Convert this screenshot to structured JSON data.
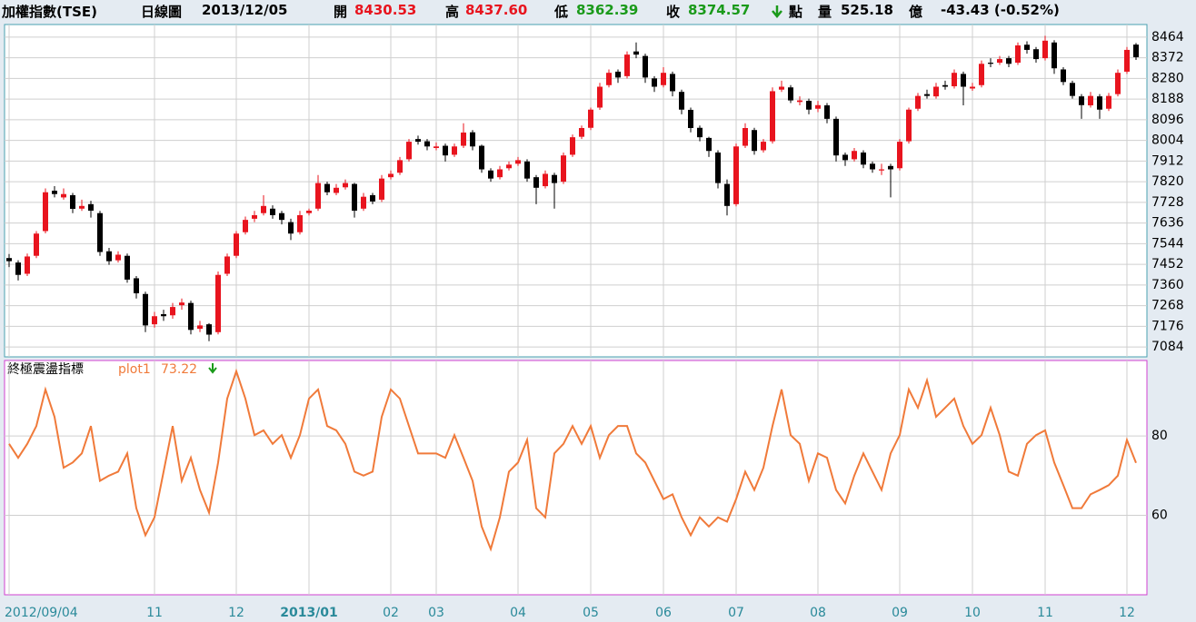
{
  "header": {
    "title": "加權指數(TSE)",
    "period": "日線圖",
    "date": "2013/12/05",
    "open_label": "開",
    "open": "8430.53",
    "high_label": "高",
    "high": "8437.60",
    "low_label": "低",
    "low": "8362.39",
    "close_label": "收",
    "close": "8374.57",
    "unit": "點",
    "volume_label": "量",
    "volume": "525.18",
    "volume_unit": "億",
    "change": "-43.43 (-0.52%)"
  },
  "chart_data": [
    {
      "type": "candlestick",
      "up_color": "#e8141e",
      "down_color": "#000000",
      "grid": true,
      "ylim": [
        7040,
        8520
      ],
      "yticks": [
        8464,
        8372,
        8280,
        8188,
        8096,
        8004,
        7912,
        7820,
        7728,
        7636,
        7544,
        7452,
        7360,
        7268,
        7176,
        7084
      ],
      "xticks": [
        {
          "value": 0,
          "label": "2012/09/04"
        },
        {
          "value": 16,
          "label": "11"
        },
        {
          "value": 25,
          "label": "12"
        },
        {
          "value": 33,
          "label": "2013/01"
        },
        {
          "value": 42,
          "label": "02"
        },
        {
          "value": 47,
          "label": "03"
        },
        {
          "value": 56,
          "label": "04"
        },
        {
          "value": 64,
          "label": "05"
        },
        {
          "value": 72,
          "label": "06"
        },
        {
          "value": 80,
          "label": "07"
        },
        {
          "value": 89,
          "label": "08"
        },
        {
          "value": 98,
          "label": "09"
        },
        {
          "value": 106,
          "label": "10"
        },
        {
          "value": 114,
          "label": "11"
        },
        {
          "value": 123,
          "label": "12"
        }
      ],
      "candles": [
        [
          7480,
          7498,
          7440,
          7466
        ],
        [
          7460,
          7470,
          7380,
          7405
        ],
        [
          7410,
          7500,
          7400,
          7487
        ],
        [
          7490,
          7600,
          7480,
          7589
        ],
        [
          7600,
          7790,
          7590,
          7773
        ],
        [
          7780,
          7800,
          7750,
          7765
        ],
        [
          7750,
          7790,
          7740,
          7765
        ],
        [
          7760,
          7770,
          7680,
          7699
        ],
        [
          7700,
          7740,
          7690,
          7712
        ],
        [
          7720,
          7735,
          7660,
          7691
        ],
        [
          7680,
          7690,
          7490,
          7507
        ],
        [
          7510,
          7525,
          7450,
          7466
        ],
        [
          7470,
          7510,
          7460,
          7495
        ],
        [
          7490,
          7500,
          7370,
          7384
        ],
        [
          7390,
          7400,
          7300,
          7323
        ],
        [
          7320,
          7330,
          7150,
          7180
        ],
        [
          7185,
          7240,
          7170,
          7221
        ],
        [
          7230,
          7250,
          7200,
          7221
        ],
        [
          7225,
          7280,
          7210,
          7262
        ],
        [
          7270,
          7300,
          7250,
          7282
        ],
        [
          7280,
          7290,
          7140,
          7160
        ],
        [
          7165,
          7200,
          7150,
          7180
        ],
        [
          7185,
          7190,
          7110,
          7139
        ],
        [
          7150,
          7420,
          7140,
          7405
        ],
        [
          7410,
          7500,
          7400,
          7487
        ],
        [
          7490,
          7600,
          7480,
          7589
        ],
        [
          7595,
          7665,
          7585,
          7650
        ],
        [
          7655,
          7690,
          7640,
          7671
        ],
        [
          7680,
          7760,
          7670,
          7712
        ],
        [
          7700,
          7715,
          7655,
          7671
        ],
        [
          7680,
          7690,
          7630,
          7650
        ],
        [
          7640,
          7655,
          7560,
          7589
        ],
        [
          7595,
          7690,
          7585,
          7671
        ],
        [
          7680,
          7700,
          7670,
          7691
        ],
        [
          7700,
          7850,
          7690,
          7814
        ],
        [
          7810,
          7820,
          7760,
          7773
        ],
        [
          7770,
          7810,
          7760,
          7793
        ],
        [
          7795,
          7830,
          7785,
          7814
        ],
        [
          7810,
          7815,
          7660,
          7691
        ],
        [
          7700,
          7770,
          7690,
          7753
        ],
        [
          7760,
          7770,
          7720,
          7732
        ],
        [
          7740,
          7850,
          7730,
          7834
        ],
        [
          7840,
          7870,
          7830,
          7855
        ],
        [
          7860,
          7930,
          7850,
          7916
        ],
        [
          7920,
          8010,
          7910,
          7998
        ],
        [
          8010,
          8025,
          7985,
          7998
        ],
        [
          8000,
          8010,
          7960,
          7977
        ],
        [
          7970,
          7995,
          7960,
          7977
        ],
        [
          7980,
          7990,
          7910,
          7937
        ],
        [
          7940,
          7990,
          7930,
          7977
        ],
        [
          7980,
          8080,
          7970,
          8039
        ],
        [
          8040,
          8050,
          7960,
          7977
        ],
        [
          7980,
          7985,
          7860,
          7875
        ],
        [
          7870,
          7880,
          7820,
          7834
        ],
        [
          7840,
          7890,
          7830,
          7875
        ],
        [
          7880,
          7910,
          7870,
          7896
        ],
        [
          7900,
          7930,
          7890,
          7916
        ],
        [
          7910,
          7920,
          7820,
          7834
        ],
        [
          7840,
          7850,
          7720,
          7793
        ],
        [
          7800,
          7870,
          7790,
          7855
        ],
        [
          7850,
          7860,
          7700,
          7814
        ],
        [
          7820,
          7950,
          7810,
          7937
        ],
        [
          7940,
          8030,
          7930,
          8018
        ],
        [
          8020,
          8070,
          8010,
          8059
        ],
        [
          8060,
          8150,
          8050,
          8141
        ],
        [
          8150,
          8260,
          8140,
          8243
        ],
        [
          8250,
          8320,
          8240,
          8305
        ],
        [
          8310,
          8320,
          8260,
          8284
        ],
        [
          8290,
          8400,
          8280,
          8386
        ],
        [
          8400,
          8440,
          8370,
          8386
        ],
        [
          8380,
          8390,
          8260,
          8284
        ],
        [
          8280,
          8290,
          8220,
          8243
        ],
        [
          8250,
          8330,
          8240,
          8305
        ],
        [
          8300,
          8310,
          8200,
          8223
        ],
        [
          8220,
          8230,
          8120,
          8141
        ],
        [
          8140,
          8150,
          8040,
          8059
        ],
        [
          8060,
          8070,
          8000,
          8018
        ],
        [
          8015,
          8020,
          7930,
          7957
        ],
        [
          7950,
          7960,
          7790,
          7814
        ],
        [
          7810,
          7830,
          7670,
          7712
        ],
        [
          7720,
          7990,
          7710,
          7977
        ],
        [
          7980,
          8080,
          7970,
          8059
        ],
        [
          8050,
          8060,
          7940,
          7957
        ],
        [
          7960,
          8010,
          7950,
          7998
        ],
        [
          8000,
          8240,
          7990,
          8223
        ],
        [
          8230,
          8270,
          8220,
          8243
        ],
        [
          8240,
          8250,
          8170,
          8182
        ],
        [
          8175,
          8200,
          8160,
          8182
        ],
        [
          8180,
          8190,
          8120,
          8141
        ],
        [
          8145,
          8180,
          8130,
          8161
        ],
        [
          8160,
          8170,
          8080,
          8100
        ],
        [
          8100,
          8110,
          7910,
          7937
        ],
        [
          7940,
          7950,
          7890,
          7916
        ],
        [
          7920,
          7970,
          7910,
          7957
        ],
        [
          7950,
          7960,
          7880,
          7896
        ],
        [
          7900,
          7910,
          7860,
          7875
        ],
        [
          7870,
          7900,
          7850,
          7875
        ],
        [
          7890,
          7900,
          7750,
          7875
        ],
        [
          7880,
          8010,
          7870,
          7998
        ],
        [
          8000,
          8150,
          7990,
          8141
        ],
        [
          8145,
          8215,
          8135,
          8202
        ],
        [
          8210,
          8230,
          8190,
          8202
        ],
        [
          8200,
          8260,
          8190,
          8243
        ],
        [
          8250,
          8270,
          8230,
          8243
        ],
        [
          8245,
          8320,
          8235,
          8305
        ],
        [
          8300,
          8310,
          8160,
          8243
        ],
        [
          8235,
          8260,
          8225,
          8243
        ],
        [
          8250,
          8360,
          8240,
          8345
        ],
        [
          8350,
          8370,
          8330,
          8345
        ],
        [
          8350,
          8380,
          8340,
          8366
        ],
        [
          8370,
          8380,
          8330,
          8345
        ],
        [
          8350,
          8440,
          8340,
          8427
        ],
        [
          8430,
          8445,
          8390,
          8407
        ],
        [
          8410,
          8420,
          8350,
          8366
        ],
        [
          8370,
          8470,
          8360,
          8448
        ],
        [
          8440,
          8450,
          8300,
          8325
        ],
        [
          8320,
          8330,
          8250,
          8264
        ],
        [
          8260,
          8270,
          8190,
          8202
        ],
        [
          8200,
          8210,
          8100,
          8161
        ],
        [
          8160,
          8220,
          8150,
          8202
        ],
        [
          8200,
          8210,
          8100,
          8141
        ],
        [
          8145,
          8215,
          8135,
          8202
        ],
        [
          8210,
          8320,
          8200,
          8305
        ],
        [
          8310,
          8420,
          8300,
          8407
        ],
        [
          8430.53,
          8437.6,
          8362.39,
          8374.57
        ]
      ]
    },
    {
      "type": "line",
      "title": "終極震盪指標",
      "grid": true,
      "ylim": [
        40,
        99
      ],
      "yticks": [
        60,
        80
      ],
      "latest_value": "73.22",
      "series": [
        {
          "name": "plot1",
          "color": "#f07a3a",
          "values": [
            78,
            74.5,
            78,
            82.5,
            91.7,
            84.8,
            72,
            73.3,
            75.6,
            82.5,
            68.7,
            70,
            71,
            75.6,
            61.8,
            55,
            59.5,
            71,
            82.5,
            68.7,
            74.5,
            66.4,
            60.7,
            73.3,
            89.4,
            96.3,
            89.4,
            80.2,
            81.4,
            78,
            80.2,
            74.5,
            80.2,
            89.4,
            91.7,
            82.5,
            81.4,
            78,
            71,
            70,
            71,
            84.8,
            91.7,
            89.4,
            82.5,
            75.6,
            75.6,
            75.6,
            74.5,
            80.2,
            74.5,
            68.7,
            57.2,
            51.5,
            59.5,
            71,
            73.3,
            79,
            61.8,
            59.5,
            75.6,
            78,
            82.5,
            78,
            82.5,
            74.5,
            80.2,
            82.5,
            82.5,
            75.6,
            73.3,
            68.7,
            64.1,
            65.3,
            59.5,
            55,
            59.5,
            57.2,
            59.5,
            58.4,
            64.1,
            71,
            66.4,
            72,
            82.5,
            91.7,
            80.2,
            78,
            68.7,
            75.6,
            74.5,
            66.4,
            63,
            70,
            75.6,
            71,
            66.4,
            75.6,
            80.2,
            91.7,
            87.1,
            94,
            84.8,
            87.1,
            89.4,
            82.5,
            78,
            80.2,
            87.1,
            80.2,
            71,
            70,
            78,
            80.2,
            81.4,
            73.3,
            67.6,
            61.8,
            61.8,
            65.3,
            66.4,
            67.6,
            70,
            79,
            73.22
          ]
        }
      ]
    }
  ]
}
